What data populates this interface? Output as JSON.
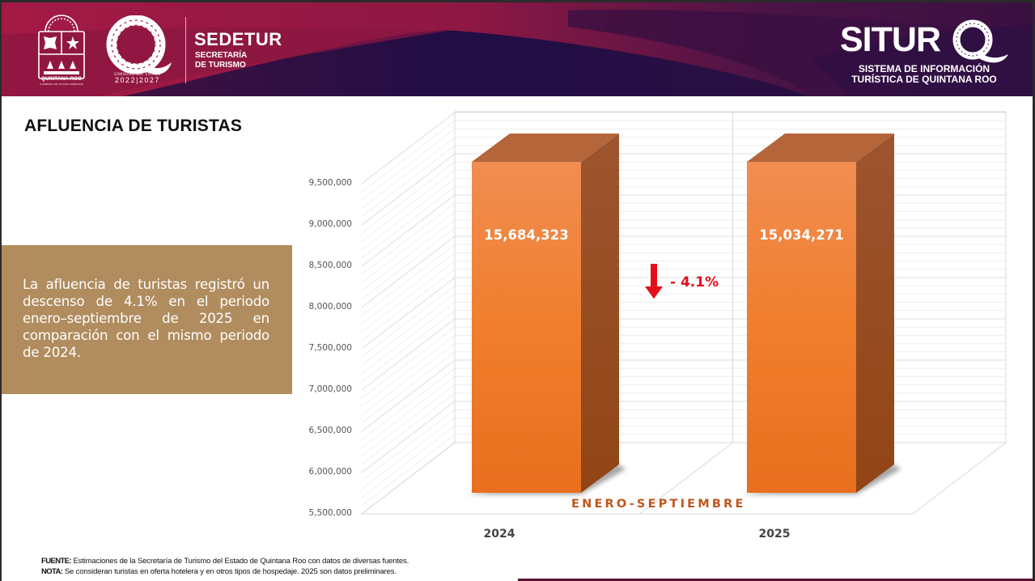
{
  "header": {
    "state_name": "QUINTANA ROO",
    "state_subtitle": "GOBIERNO DEL ESTADO SOBERANO",
    "gov_label": "GOBIERNO DEL ESTADO",
    "gov_years": "2022|2027",
    "agency_name": "SEDETUR",
    "agency_sub_line1": "SECRETARÍA",
    "agency_sub_line2": "DE TURISMO",
    "system_name": "SITUR",
    "system_sub_line1": "SISTEMA DE INFORMACIÓN",
    "system_sub_line2": "TURÍSTICA DE QUINTANA ROO",
    "colors": {
      "crimson": "#9c1a44",
      "plum": "#4a1346",
      "navy": "#1a0d45"
    }
  },
  "page": {
    "title": "AFLUENCIA DE TURISTAS",
    "summary": "La afluencia de turistas registró un descenso de 4.1% en el periodo enero–septiembre de 2025 en comparación con el mismo periodo de 2024.",
    "summary_box_color": "#b08c5e"
  },
  "chart_data": {
    "type": "bar",
    "style": "3d-column",
    "title": "AFLUENCIA DE TURISTAS",
    "categories": [
      "2024",
      "2025"
    ],
    "values": [
      15684323,
      15034271
    ],
    "data_labels": [
      "15,684,323",
      "15,034,271"
    ],
    "series_label": "ENERO-SEPTIEMBRE",
    "xlabel": "",
    "ylabel": "",
    "ylim": [
      5500000,
      9500000
    ],
    "yticks": [
      5500000,
      6000000,
      6500000,
      7000000,
      7500000,
      8000000,
      8500000,
      9000000,
      9500000
    ],
    "ytick_labels": [
      "5,500,000",
      "6,000,000",
      "6,500,000",
      "7,000,000",
      "7,500,000",
      "8,000,000",
      "8,500,000",
      "9,000,000",
      "9,500,000"
    ],
    "grid": true,
    "annotation": {
      "text": "- 4.1%",
      "icon": "arrow-down-icon",
      "color": "#e3101a"
    },
    "bar_color": "#ef7d2e",
    "bar_side_color": "#9b4c1a",
    "bar_top_color": "#b5653a",
    "series_label_color": "#c0561c"
  },
  "footer": {
    "source_label": "FUENTE:",
    "source_text": " Estimaciones de la Secretaría de Turismo del Estado de Quintana Roo con datos de diversas fuentes.",
    "note_label": "NOTA:",
    "note_text": " Se consideran turistas en oferta hotelera y en otros tipos de hospedaje. 2025 son datos preliminares."
  }
}
